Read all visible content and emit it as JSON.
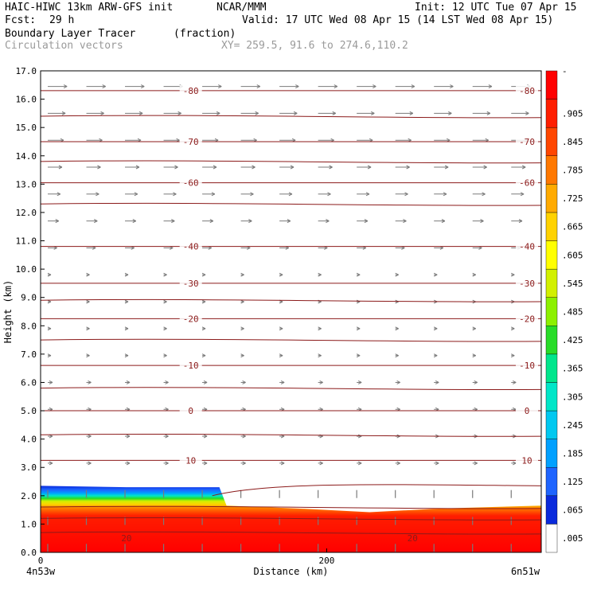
{
  "header": {
    "model": "HAIC-HIWC 13km ARW-GFS init",
    "org": "NCAR/MMM",
    "init": "Init: 12 UTC Tue 07 Apr 15",
    "fcst_label": "Fcst:",
    "fcst_value": "29 h",
    "valid": "Valid: 17 UTC Wed 08 Apr 15 (14 LST Wed 08 Apr 15)",
    "field": "Boundary Layer Tracer",
    "field_units": "(fraction)",
    "vectors": "Circulation vectors",
    "xy": "XY= 259.5, 91.6 to 274.6,110.2"
  },
  "colors": {
    "contour": "#8b1a1a",
    "vector": "#7a7a7a",
    "colorbar": [
      "#ffffff",
      "#0a2adc",
      "#1e64ff",
      "#00a0ff",
      "#00c8f0",
      "#00e6c8",
      "#00e68c",
      "#28dc28",
      "#8cf000",
      "#d2f000",
      "#ffff00",
      "#ffd200",
      "#ffaa00",
      "#ff7800",
      "#ff4600",
      "#ff1e00",
      "#ff0000"
    ]
  },
  "chart_data": {
    "type": "heatmap",
    "title": "Boundary Layer Tracer",
    "ylabel": "Height (km)",
    "xlabel": "Distance (km)",
    "ylim": [
      0,
      17
    ],
    "xlim": [
      0,
      350
    ],
    "y_ticks": [
      "0.0",
      "1.0",
      "2.0",
      "3.0",
      "4.0",
      "5.0",
      "6.0",
      "7.0",
      "8.0",
      "9.0",
      "10.0",
      "11.0",
      "12.0",
      "13.0",
      "14.0",
      "15.0",
      "16.0",
      "17.0"
    ],
    "x_ticks": [
      {
        "value": 0,
        "label": "0"
      },
      {
        "value": 200,
        "label": "200"
      }
    ],
    "x_endpoints": {
      "left": "4n53w",
      "right": "6n51w"
    },
    "colorbar_labels": [
      "-",
      ".905",
      ".845",
      ".785",
      ".725",
      ".665",
      ".605",
      ".545",
      ".485",
      ".425",
      ".365",
      ".305",
      ".245",
      ".185",
      ".125",
      ".065",
      ".005"
    ],
    "boundary_layer_top_km": [
      {
        "x": 0,
        "top": 2.35
      },
      {
        "x": 60,
        "top": 2.3
      },
      {
        "x": 125,
        "top": 2.3
      },
      {
        "x": 130,
        "top": 1.65
      },
      {
        "x": 180,
        "top": 1.55
      },
      {
        "x": 230,
        "top": 1.42
      },
      {
        "x": 280,
        "top": 1.55
      },
      {
        "x": 350,
        "top": 1.65
      }
    ],
    "temperature_contours": [
      {
        "label": "10",
        "y_left": 3.25,
        "y_right": 3.25
      },
      {
        "label": "0",
        "y_left": 5.0,
        "y_right": 5.0
      },
      {
        "label": "-10",
        "y_left": 6.6,
        "y_right": 6.6
      },
      {
        "label": "-20",
        "y_left": 8.25,
        "y_right": 8.25
      },
      {
        "label": "-30",
        "y_left": 9.5,
        "y_right": 9.5
      },
      {
        "label": "-40",
        "y_left": 10.8,
        "y_right": 10.8
      },
      {
        "label": "-60",
        "y_left": 13.05,
        "y_right": 13.05
      },
      {
        "label": "-70",
        "y_left": 14.5,
        "y_right": 14.5
      },
      {
        "label": "-80",
        "y_left": 16.3,
        "y_right": 16.3
      }
    ],
    "inline_labels": [
      "20",
      "20"
    ]
  }
}
